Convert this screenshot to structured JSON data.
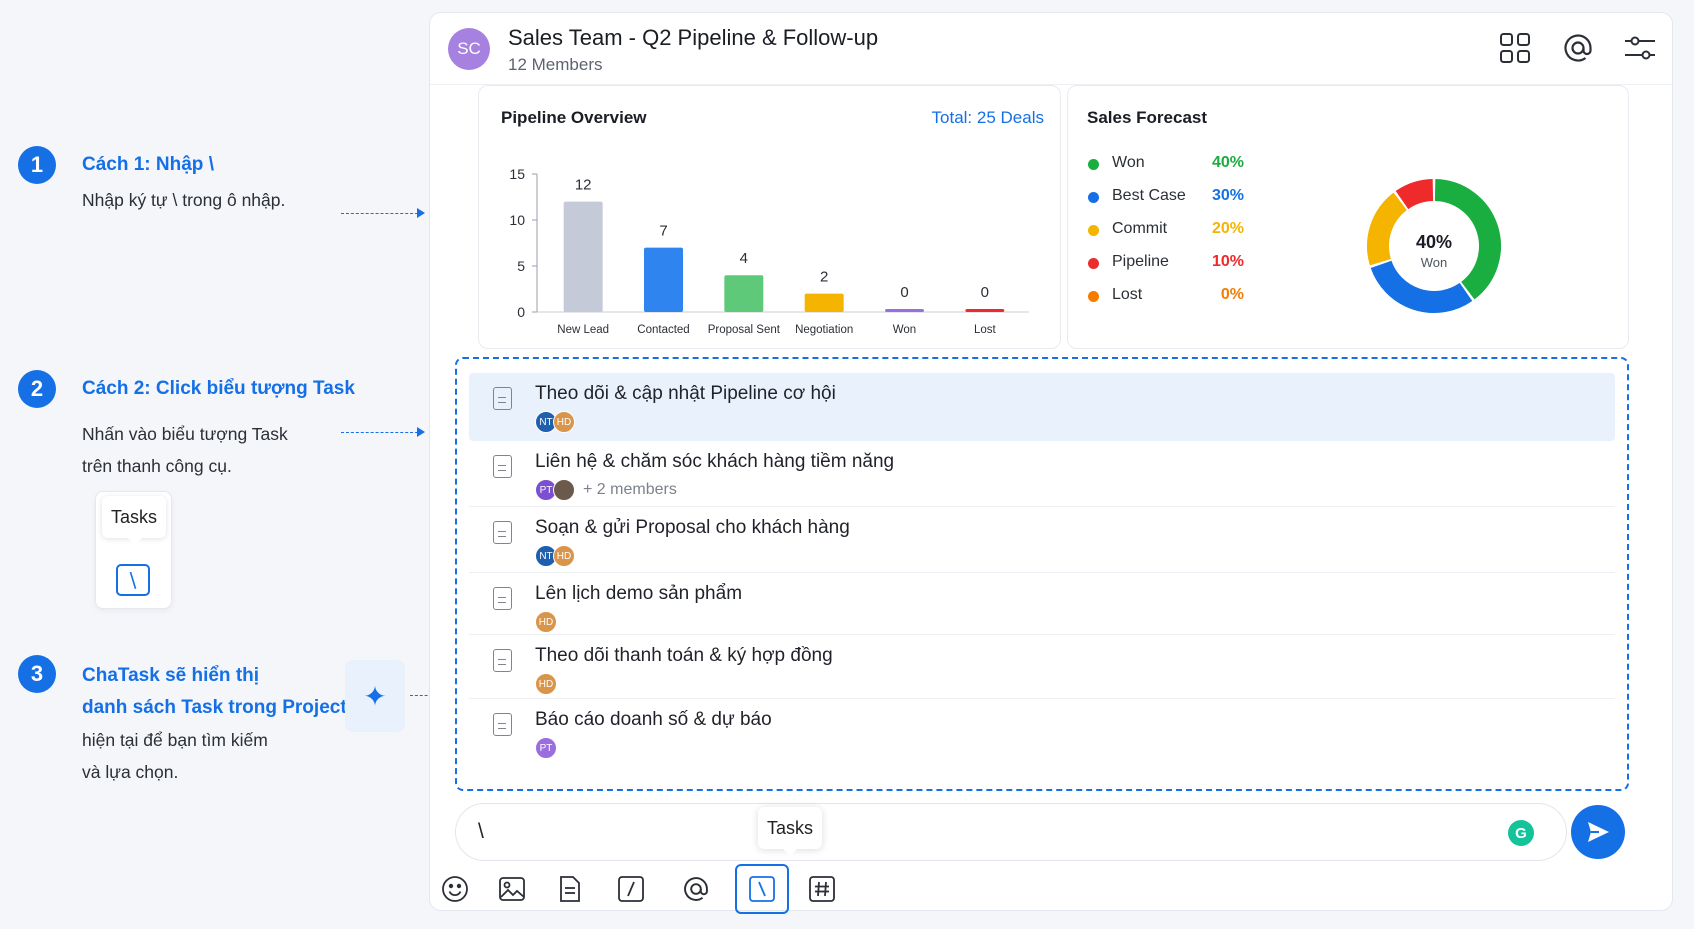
{
  "guide": {
    "steps": [
      {
        "num": "1",
        "title": "Cách 1: Nhập \\",
        "desc": [
          "Nhập ký tự \\ trong ô nhập."
        ]
      },
      {
        "num": "2",
        "title": "Cách 2: Click biểu tượng Task",
        "desc": [
          "Nhấn vào biểu tượng Task",
          "trên thanh công cụ."
        ]
      },
      {
        "num": "3",
        "title_lines": [
          "ChaTask sẽ hiển thị",
          "danh sách Task trong Project"
        ],
        "desc": [
          "hiện tại để bạn tìm kiếm",
          "và lựa chọn."
        ]
      }
    ],
    "tip_label": "Tasks",
    "tip_icon": "\\"
  },
  "header": {
    "avatar": "SC",
    "title": "Sales Team - Q2 Pipeline & Follow-up",
    "subtitle": "12 Members",
    "icons": [
      "grid-icon",
      "mention-icon",
      "settings-sliders-icon"
    ]
  },
  "pipeline": {
    "title": "Pipeline Overview",
    "total_label": "Total:",
    "total_value": "25 Deals"
  },
  "forecast": {
    "title": "Sales Forecast",
    "legend": [
      {
        "name": "Won",
        "value": "40%",
        "color": "#1aad3f"
      },
      {
        "name": "Best Case",
        "value": "30%",
        "color": "#1570e6"
      },
      {
        "name": "Commit",
        "value": "20%",
        "color": "#f5b400"
      },
      {
        "name": "Pipeline",
        "value": "10%",
        "color": "#ee2a2a"
      },
      {
        "name": "Lost",
        "value": "0%",
        "color": "#f57c00"
      }
    ],
    "center_value": "40%",
    "center_label": "Won"
  },
  "chart_data": [
    {
      "type": "bar",
      "title": "Pipeline Overview",
      "categories": [
        "New Lead",
        "Contacted",
        "Proposal Sent",
        "Negotiation",
        "Won",
        "Lost"
      ],
      "values": [
        12,
        7,
        4,
        2,
        0,
        0
      ],
      "colors": [
        "#c5cad8",
        "#2f84f0",
        "#5fc97a",
        "#f5b400",
        "#9b6ee0",
        "#ee2a2a"
      ],
      "ylim": [
        0,
        15
      ],
      "yticks": [
        0,
        5,
        10,
        15
      ],
      "grid": false
    },
    {
      "type": "pie",
      "title": "Sales Forecast",
      "categories": [
        "Won",
        "Best Case",
        "Commit",
        "Pipeline",
        "Lost"
      ],
      "values": [
        40,
        30,
        20,
        10,
        0
      ],
      "colors": [
        "#1aad3f",
        "#1570e6",
        "#f5b400",
        "#ee2a2a",
        "#f57c00"
      ],
      "legend_position": "left"
    }
  ],
  "tasks": [
    {
      "name": "Theo dõi & cập nhật Pipeline cơ hội",
      "members": [
        {
          "initials": "NT",
          "color": "#1f5fae"
        },
        {
          "initials": "HD",
          "color": "#d9954a"
        }
      ],
      "more": "",
      "selected": true
    },
    {
      "name": "Liên hệ & chăm sóc khách hàng tiềm năng",
      "members": [
        {
          "initials": "PT",
          "color": "#7b4fd0"
        },
        {
          "initials": "",
          "color": "#6b5a4c"
        }
      ],
      "more": "+ 2 members",
      "selected": false
    },
    {
      "name": "Soạn & gửi Proposal cho khách hàng",
      "members": [
        {
          "initials": "NT",
          "color": "#1f5fae"
        },
        {
          "initials": "HD",
          "color": "#d9954a"
        }
      ],
      "more": "",
      "selected": false
    },
    {
      "name": "Lên lịch demo sản phẩm",
      "members": [
        {
          "initials": "HD",
          "color": "#d9954a"
        }
      ],
      "more": "",
      "selected": false
    },
    {
      "name": "Theo dõi thanh toán & ký hợp đồng",
      "members": [
        {
          "initials": "HD",
          "color": "#d9954a"
        }
      ],
      "more": "",
      "selected": false
    },
    {
      "name": "Báo cáo doanh số & dự báo",
      "members": [
        {
          "initials": "PT",
          "color": "#9b6ee0"
        }
      ],
      "more": "",
      "selected": false
    }
  ],
  "composer": {
    "value": "\\",
    "tooltip": "Tasks",
    "tools": [
      "emoji-icon",
      "image-icon",
      "document-icon",
      "slash-command-icon",
      "mention-icon",
      "task-icon",
      "hashtag-icon"
    ],
    "active_tool": "task-icon"
  }
}
